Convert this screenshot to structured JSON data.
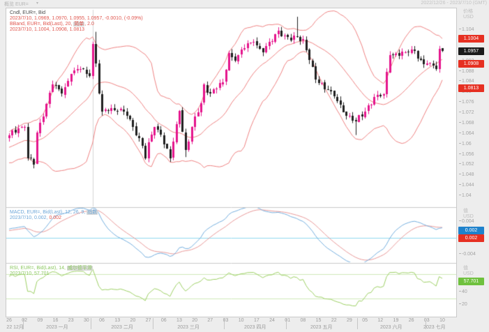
{
  "topbar": {
    "title": "概览 EUR=",
    "caret": "▾",
    "range": "2022/12/26 - 2023/7/10 (GMT)"
  },
  "legend_main": {
    "line1": "Cndl, EUR=, Bid",
    "line2": "2023/7/10, 1.0969, 1.0970, 1.0955, 1.0957, -0.0010, (-0.09%)",
    "line3_prefix": "BBand, EUR=, Bid(Last), 20, ",
    "line3_chip": "简单",
    "line3_suffix": ", 2.0",
    "line4": "2023/7/10, 1.1004, 1.0908, 1.0813"
  },
  "legend_macd": {
    "line1_prefix": "MACD, EUR=, Bid(Last), 12, 26, 9, ",
    "line1_chip": "指数",
    "line2_blue": "2023/7/10, 0.002,",
    "line2_red": " 0.002"
  },
  "legend_rsi": {
    "line1_prefix": "RSI, EUR=, Bid(Last), 14, ",
    "line1_chip": "威尔德平滑",
    "line2": "2023/7/10, 57.701"
  },
  "scale_headers": [
    {
      "line1": "价格",
      "line2": "USD"
    },
    {
      "line1": "值",
      "line2": "USD"
    },
    {
      "line1": "值",
      "line2": "USD"
    }
  ],
  "badges": {
    "main": [
      {
        "text": "1.1004",
        "price": 1.1004,
        "color": "red"
      },
      {
        "text": "1.0957",
        "price": 1.0957,
        "color": "black"
      },
      {
        "text": "1.0908",
        "price": 1.0908,
        "color": "red"
      },
      {
        "text": "1.0813",
        "price": 1.0813,
        "color": "red"
      }
    ],
    "macd": [
      {
        "text": "0.002",
        "value": 0.002,
        "color": "blue"
      },
      {
        "text": "0.002",
        "value": 0.002,
        "color": "red"
      }
    ],
    "rsi": {
      "text": "57.701",
      "value": 57.701,
      "color": "green"
    }
  },
  "colors": {
    "up": "#e5148c",
    "down": "#1f1f1f",
    "bband": "#ee8181",
    "macd_line": "#74aede",
    "macd_signal": "#e89898",
    "macd_zero": "#8fd9ee",
    "rsi_line": "#9ccf63",
    "rsi_guide": "#cfe9b8",
    "badge_red": "#e63022",
    "badge_black": "#1b1b1b",
    "badge_blue": "#1f82cc",
    "badge_green": "#6fc13e",
    "divider": "#c9c9c9",
    "cursor": "#d4d4d4"
  },
  "chart_data": {
    "type": "candlestick",
    "symbol": "EUR=",
    "field": "Bid",
    "interval": "daily",
    "x_range": [
      "2022/12/26",
      "2023/7/10"
    ],
    "n_candles": 141,
    "ylim_main": [
      1.04,
      1.104
    ],
    "y_ticks_main": [
      {
        "v": 1.104,
        "t": "1.104"
      },
      {
        "v": 1.1,
        "t": "1.1"
      },
      {
        "v": 1.096,
        "t": "1.096"
      },
      {
        "v": 1.092,
        "t": "1.092"
      },
      {
        "v": 1.088,
        "t": "1.088"
      },
      {
        "v": 1.084,
        "t": "1.084"
      },
      {
        "v": 1.08,
        "t": "1.08"
      },
      {
        "v": 1.076,
        "t": "1.076"
      },
      {
        "v": 1.072,
        "t": "1.072"
      },
      {
        "v": 1.068,
        "t": "1.068"
      },
      {
        "v": 1.064,
        "t": "1.064"
      },
      {
        "v": 1.06,
        "t": "1.06"
      },
      {
        "v": 1.056,
        "t": "1.056"
      },
      {
        "v": 1.052,
        "t": "1.052"
      },
      {
        "v": 1.048,
        "t": "1.048"
      },
      {
        "v": 1.044,
        "t": "1.044"
      },
      {
        "v": 1.04,
        "t": "1.04"
      }
    ],
    "macd_ylim": [
      0.0075,
      -0.006
    ],
    "macd_ticks": [
      {
        "v": 0.004,
        "t": "0.004"
      },
      {
        "v": -0.004,
        "t": "-0.004"
      }
    ],
    "rsi_ylim": [
      88,
      0
    ],
    "rsi_ticks": [
      {
        "v": 40,
        "t": "40"
      },
      {
        "v": 20,
        "t": "20"
      }
    ],
    "rsi_guide_lines": [
      70,
      30
    ],
    "indicators": {
      "bollinger": {
        "period": 20,
        "ma_type": "简单",
        "mult": 2.0,
        "last_upper": 1.1004,
        "last_mid": 1.0908,
        "last_lower": 1.0813
      },
      "macd": {
        "fast": 12,
        "slow": 26,
        "signal": 9,
        "ma_type": "指数",
        "last_macd": 0.002,
        "last_signal": 0.002
      },
      "rsi": {
        "period": 14,
        "smoothing": "威尔德平滑",
        "last": 57.701
      }
    },
    "last_candle": {
      "date": "2023/7/10",
      "open": 1.0969,
      "high": 1.097,
      "low": 1.0955,
      "close": 1.0957,
      "change": -0.001,
      "change_pct": "-0.09%"
    },
    "close_anchors": [
      [
        0,
        1.0635
      ],
      [
        3,
        1.0661
      ],
      [
        5,
        1.0667
      ],
      [
        6,
        1.0546
      ],
      [
        8,
        1.0521
      ],
      [
        9,
        1.0644
      ],
      [
        12,
        1.0756
      ],
      [
        14,
        1.083
      ],
      [
        17,
        1.0793
      ],
      [
        20,
        1.0871
      ],
      [
        23,
        1.089
      ],
      [
        26,
        1.0863
      ],
      [
        27,
        1.0987
      ],
      [
        28,
        1.091
      ],
      [
        29,
        1.0795
      ],
      [
        30,
        1.0725
      ],
      [
        33,
        1.0739
      ],
      [
        36,
        1.0736
      ],
      [
        39,
        1.0695
      ],
      [
        43,
        1.0595
      ],
      [
        44,
        1.0546
      ],
      [
        45,
        1.0608
      ],
      [
        47,
        1.0666
      ],
      [
        49,
        1.0635
      ],
      [
        52,
        1.0545
      ],
      [
        55,
        1.0729
      ],
      [
        57,
        1.0577
      ],
      [
        59,
        1.0665
      ],
      [
        62,
        1.0757
      ],
      [
        63,
        1.083
      ],
      [
        65,
        1.0796
      ],
      [
        69,
        1.0839
      ],
      [
        71,
        1.0952
      ],
      [
        73,
        1.0922
      ],
      [
        77,
        1.0989
      ],
      [
        79,
        1.0994
      ],
      [
        82,
        1.0954
      ],
      [
        87,
        1.1038
      ],
      [
        89,
        1.1019
      ],
      [
        91,
        1.1
      ],
      [
        93,
        1.1013
      ],
      [
        95,
        1.1004
      ],
      [
        99,
        1.0849
      ],
      [
        104,
        1.0805
      ],
      [
        108,
        1.0724
      ],
      [
        112,
        1.0688
      ],
      [
        114,
        1.0707
      ],
      [
        118,
        1.0781
      ],
      [
        121,
        1.0792
      ],
      [
        123,
        1.0944
      ],
      [
        128,
        1.0955
      ],
      [
        131,
        1.096
      ],
      [
        134,
        1.0909
      ],
      [
        135,
        1.0911
      ],
      [
        138,
        1.0889
      ],
      [
        139,
        1.0968
      ],
      [
        140,
        1.0957
      ]
    ],
    "candle_overrides": [
      {
        "i": 28,
        "h": 1.1033
      },
      {
        "i": 57,
        "l": 1.055
      },
      {
        "i": 93,
        "h": 1.1091
      },
      {
        "i": 112,
        "l": 1.0635
      },
      {
        "i": 140,
        "o": 1.0969,
        "h": 1.097,
        "l": 1.0955,
        "c": 1.0957
      }
    ],
    "cursor_line_frac": 0.193,
    "xaxis": {
      "day_labels": [
        "26",
        "02",
        "09",
        "16",
        "23",
        "30",
        "06",
        "13",
        "20",
        "27",
        "06",
        "13",
        "20",
        "27",
        "03",
        "10",
        "17",
        "24",
        "01",
        "08",
        "15",
        "22",
        "29",
        "05",
        "12",
        "19",
        "26",
        "03",
        "10"
      ],
      "months": [
        {
          "t": "22 12月",
          "f": 0.014
        },
        {
          "t": "2023 一月",
          "f": 0.111
        },
        {
          "t": "2023 二月",
          "f": 0.261
        },
        {
          "t": "2023 三月",
          "f": 0.414
        },
        {
          "t": "2023 四月",
          "f": 0.568
        },
        {
          "t": "2023 五月",
          "f": 0.721
        },
        {
          "t": "2023 六月",
          "f": 0.882
        },
        {
          "t": "2023 七月",
          "f": 0.982
        }
      ],
      "month_boundaries": [
        0.032,
        0.189,
        0.332,
        0.496,
        0.639,
        0.804,
        0.961
      ]
    }
  }
}
